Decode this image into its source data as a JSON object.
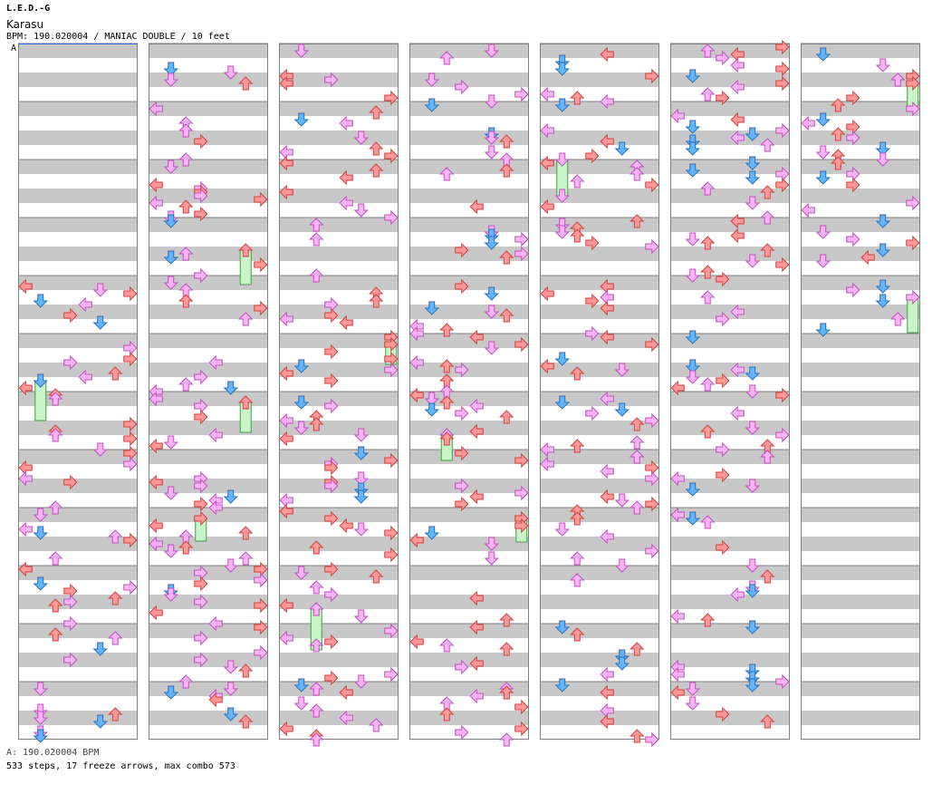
{
  "header": {
    "artist": "L.E.D.-G",
    "title": "Karasu",
    "meta": "BPM: 190.020004 / MANIAC DOUBLE / 10 feet",
    "bpm_marker": "A"
  },
  "footer": {
    "bpm_legend": "A: 190.020004 BPM",
    "stats": "533 steps, 17 freeze arrows, max combo 573"
  },
  "colors": {
    "stripe": "#c8c8c8",
    "background": "#ffffff",
    "border": "#808080",
    "red_note": "#ff9999",
    "red_edge": "#d04040",
    "blue_note": "#66b3ff",
    "blue_edge": "#2a6fb8",
    "pink_note": "#ffb3ff",
    "pink_edge": "#c050c0",
    "freeze_body": "#c8f5c8",
    "freeze_edge": "#40a040",
    "bpm_line": "#3070ff"
  },
  "chart_data": {
    "type": "stepchart",
    "columns": 7,
    "measures_per_column": 12,
    "lanes": 8,
    "bpm": 190.020004,
    "difficulty": "MANIAC DOUBLE",
    "feet": 10,
    "steps": 533,
    "freeze_arrows": 17,
    "max_combo": 573,
    "note_seed": 17
  }
}
